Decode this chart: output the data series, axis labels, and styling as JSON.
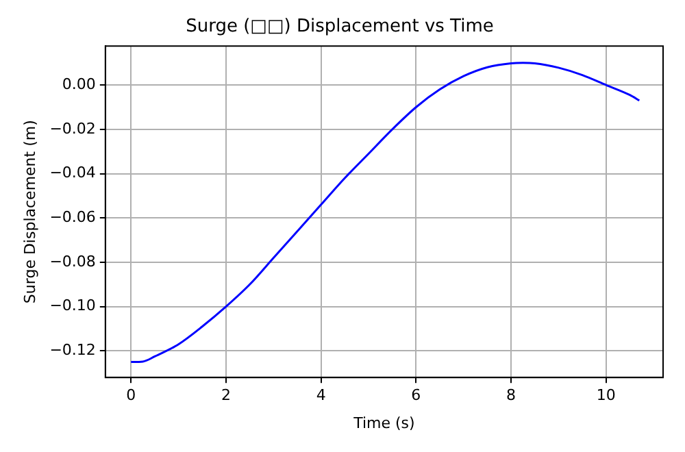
{
  "chart_data": {
    "type": "line",
    "title": "Surge (□□) Displacement vs Time",
    "xlabel": "Time (s)",
    "ylabel": "Surge Displacement (m)",
    "x": [
      0,
      0.25,
      0.5,
      1,
      1.5,
      2,
      2.5,
      3,
      3.5,
      4,
      4.5,
      5,
      5.5,
      6,
      6.5,
      7,
      7.5,
      8,
      8.25,
      8.5,
      9,
      9.5,
      10,
      10.5,
      10.7
    ],
    "series": [
      {
        "color": "#0000ff",
        "values": [
          -0.125,
          -0.1248,
          -0.1225,
          -0.117,
          -0.109,
          -0.1,
          -0.09,
          -0.078,
          -0.066,
          -0.054,
          -0.042,
          -0.031,
          -0.02,
          -0.01,
          -0.002,
          0.004,
          0.008,
          0.0098,
          0.01,
          0.0098,
          0.0078,
          0.0045,
          0,
          -0.0045,
          -0.007
        ]
      }
    ],
    "xlim": [
      -0.54,
      11.2
    ],
    "xticks": [
      0,
      2,
      4,
      6,
      8,
      10
    ],
    "ylim": [
      -0.132,
      0.0176
    ],
    "yticks": [
      {
        "value": -0.12,
        "label": "−0.12"
      },
      {
        "value": -0.1,
        "label": "−0.10"
      },
      {
        "value": -0.08,
        "label": "−0.08"
      },
      {
        "value": -0.06,
        "label": "−0.06"
      },
      {
        "value": -0.04,
        "label": "−0.04"
      },
      {
        "value": -0.02,
        "label": "−0.02"
      },
      {
        "value": 0,
        "label": "0.00"
      }
    ],
    "grid": true,
    "marker": "none",
    "line_style": "solid",
    "legend": false
  }
}
